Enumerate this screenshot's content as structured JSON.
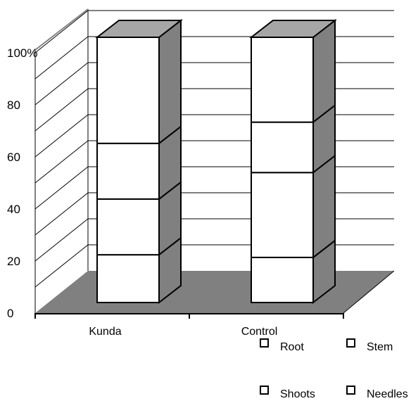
{
  "chart_data": {
    "type": "bar",
    "stacked": true,
    "three_d": true,
    "categories": [
      "Kunda",
      "Control"
    ],
    "series": [
      {
        "name": "Root",
        "values": [
          18,
          17
        ],
        "color": "#ffffff"
      },
      {
        "name": "Stem",
        "values": [
          21,
          32
        ],
        "color": "#ffffff"
      },
      {
        "name": "Shoots",
        "values": [
          21,
          19
        ],
        "color": "#ffffff"
      },
      {
        "name": "Needles",
        "values": [
          40,
          32
        ],
        "color": "#ffffff"
      }
    ],
    "y_ticks": [
      "0",
      "20",
      "40",
      "60",
      "80",
      "100%"
    ],
    "y_tick_values": [
      0,
      20,
      40,
      60,
      80,
      100
    ],
    "ylim": [
      0,
      100
    ],
    "grid": true,
    "legend_position": "bottom-right",
    "colors": {
      "floor": "#808080",
      "side": "#808080",
      "top": "#a6a6a6",
      "front": "#ffffff",
      "edge": "#000000"
    }
  }
}
